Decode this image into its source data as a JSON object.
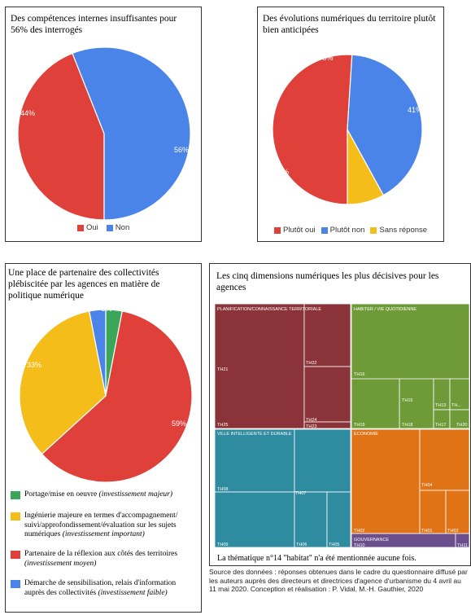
{
  "colors": {
    "red": "#e0403a",
    "blue": "#4a84e8",
    "yellow": "#f5bd1a",
    "green": "#3aa65a",
    "tm_red": "#8a3338",
    "tm_green": "#6f9a38",
    "tm_teal": "#2e8ba0",
    "tm_orange": "#df7316",
    "tm_purple": "#6a4f8c"
  },
  "chart_data": [
    {
      "type": "pie",
      "title": "Des compétences internes insuffisantes pour 56% des interrogés",
      "slices": [
        {
          "label": "Oui",
          "value": 44,
          "color": "#e0403a"
        },
        {
          "label": "Non",
          "value": 56,
          "color": "#4a84e8"
        }
      ],
      "value_labels": [
        "44%",
        "56%"
      ],
      "legend": [
        "Oui",
        "Non"
      ],
      "legend_position": "bottom"
    },
    {
      "type": "pie",
      "title": "Des évolutions numériques du territoire plutôt bien anticipées",
      "slices": [
        {
          "label": "Plutôt oui",
          "value": 51,
          "color": "#e0403a"
        },
        {
          "label": "Plutôt non",
          "value": 41,
          "color": "#4a84e8"
        },
        {
          "label": "Sans réponse",
          "value": 8,
          "color": "#f5bd1a"
        }
      ],
      "value_labels": [
        "51%",
        "41%",
        "8%"
      ],
      "legend": [
        "Plutôt oui",
        "Plutôt non",
        "Sans réponse"
      ],
      "legend_position": "bottom"
    },
    {
      "type": "pie",
      "title": "Une place de partenaire des collectivités plébiscitée par les agences en matière de politique numérique",
      "slices": [
        {
          "label": "Portage/mise en oeuvre",
          "value": 3,
          "color": "#3aa65a"
        },
        {
          "label": "Partenaire de la réflexion aux côtés des territoires",
          "value": 59,
          "color": "#e0403a"
        },
        {
          "label": "Ingénierie majeure en termes d'accompagnement/suivi/approfondissement/évaluation sur les sujets numériques",
          "value": 33,
          "color": "#f5bd1a"
        },
        {
          "label": "Démarche de sensibilisation, relais d'information auprès des collectivités",
          "value": 3,
          "color": "#4a84e8"
        }
      ],
      "value_labels": [
        "3%",
        "59%",
        "33%"
      ],
      "legend_position": "bottom"
    },
    {
      "type": "treemap",
      "title": "Les cinq dimensions numériques les plus décisives pour les agences",
      "groups": [
        {
          "name": "PLANIFICATION/CONNAISSANCE TERRITORIALE",
          "color": "#8a3338",
          "items": [
            "TH21",
            "TH22",
            "TH24",
            "TH23",
            "TH25"
          ]
        },
        {
          "name": "HABITER / VIE QUOTIDIENNE",
          "color": "#6f9a38",
          "items": [
            "TH16",
            "TH15",
            "TH13",
            "TH...",
            "TH19",
            "TH18",
            "TH17",
            "TH20"
          ]
        },
        {
          "name": "VILLE INTELLIGENTE ET DURABLE",
          "color": "#2e8ba0",
          "items": [
            "TH08",
            "TH07",
            "TH09",
            "TH06",
            "TH05"
          ]
        },
        {
          "name": "ECONOMIE",
          "color": "#df7316",
          "items": [
            "TH04",
            "TH02",
            "TH01",
            "TH03"
          ]
        },
        {
          "name": "GOUVERNANCE",
          "color": "#6a4f8c",
          "items": [
            "TH10",
            "TH11"
          ]
        }
      ]
    }
  ],
  "panel3_legend": [
    {
      "text": "Portage/mise en oeuvre",
      "emph": "(investissement majeur)",
      "color": "#3aa65a"
    },
    {
      "text": "Ingénierie majeure en termes d'accompagnement/ suivi/approfondissement/évaluation sur les sujets numériques",
      "emph": "(investissement important)",
      "color": "#f5bd1a"
    },
    {
      "text": "Partenaire de la réflexion aux côtés des territoires",
      "emph": "(investissement moyen)",
      "color": "#e0403a"
    },
    {
      "text": "Démarche de sensibilisation, relais d'information auprès des collectivités",
      "emph": "(investissement faible)",
      "color": "#4a84e8"
    }
  ],
  "caption": "La thématique n°14 \"habitat\" n'a été mentionnée aucune fois.",
  "source": "Source des données : réponses obtenues dans le cadre du questionnaire diffusé par les auteurs auprès des directeurs et directrices d'agence d'urbanisme du 4 avril au 11 mai 2020. Conception et réalisation : P. Vidal, M.-H. Gauthier, 2020"
}
